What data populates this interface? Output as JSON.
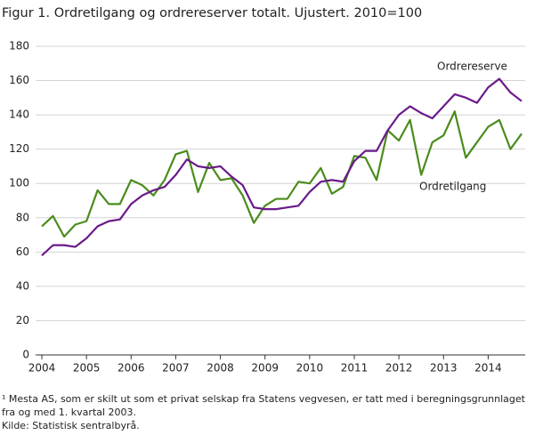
{
  "chart_data": {
    "type": "line",
    "title": "Figur 1. Ordretilgang og ordrereserver totalt. Ujustert. 2010=100",
    "x": [
      2004,
      2004.25,
      2004.5,
      2004.75,
      2005,
      2005.25,
      2005.5,
      2005.75,
      2006,
      2006.25,
      2006.5,
      2006.75,
      2007,
      2007.25,
      2007.5,
      2007.75,
      2008,
      2008.25,
      2008.5,
      2008.75,
      2009,
      2009.25,
      2009.5,
      2009.75,
      2010,
      2010.25,
      2010.5,
      2010.75,
      2011,
      2011.25,
      2011.5,
      2011.75,
      2012,
      2012.25,
      2012.5,
      2012.75,
      2013,
      2013.25,
      2013.5,
      2013.75,
      2014,
      2014.25,
      2014.5,
      2014.75
    ],
    "series": [
      {
        "name": "Ordretilgang",
        "color": "#4a8c1c",
        "values": [
          75,
          81,
          69,
          76,
          78,
          96,
          88,
          88,
          102,
          99,
          93,
          102,
          117,
          119,
          95,
          112,
          102,
          103,
          93,
          77,
          87,
          91,
          91,
          101,
          100,
          109,
          94,
          98,
          116,
          115,
          102,
          131,
          125,
          137,
          105,
          124,
          128,
          142,
          115,
          124,
          133,
          137,
          120,
          129
        ]
      },
      {
        "name": "Ordrereserve",
        "color": "#6a1a8a",
        "values": [
          58,
          64,
          64,
          63,
          68,
          75,
          78,
          79,
          88,
          93,
          96,
          98,
          105,
          114,
          110,
          109,
          110,
          104,
          99,
          86,
          85,
          85,
          86,
          87,
          95,
          101,
          102,
          101,
          113,
          119,
          119,
          131,
          140,
          145,
          141,
          138,
          145,
          152,
          150,
          147,
          156,
          161,
          153,
          148
        ]
      }
    ],
    "xlim": [
      2004,
      2014.75
    ],
    "xticks": [
      2004,
      2005,
      2006,
      2007,
      2008,
      2009,
      2010,
      2011,
      2012,
      2013,
      2014
    ],
    "ylim": [
      0,
      180
    ],
    "yticks": [
      0,
      20,
      40,
      60,
      80,
      100,
      120,
      140,
      160,
      180
    ],
    "grid": true,
    "notes": [
      "¹ Mesta AS, som er skilt ut som et privat selskap fra Statens vegvesen, er tatt med i beregningsgrunnlaget fra og med 1. kvartal 2003.",
      "Kilde: Statistisk sentralbyrå."
    ]
  }
}
